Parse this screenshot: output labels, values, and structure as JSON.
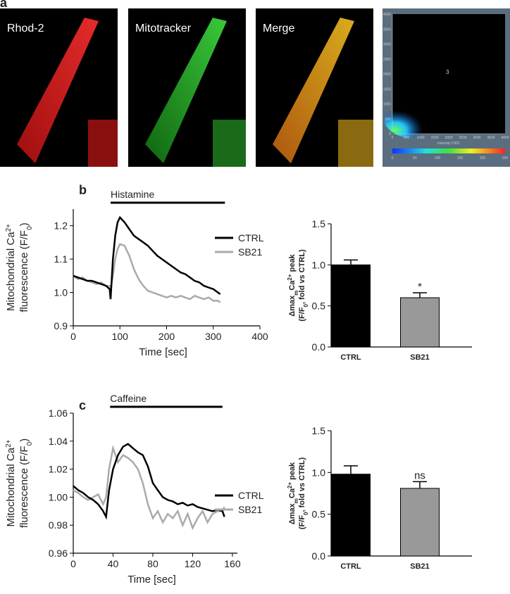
{
  "panel_labels": [
    "a",
    "b",
    "c"
  ],
  "images": {
    "labels": [
      "Rhod-2",
      "Mitotracker",
      "Merge"
    ],
    "colocalization": {
      "yticks": [
        0,
        500,
        1000,
        1500,
        2000,
        2500,
        3000,
        3500,
        4000
      ],
      "xticks": [
        0,
        500,
        1000,
        1500,
        2000,
        2500,
        3000,
        3500,
        4000
      ],
      "xlabel": "Intensity Ch01",
      "quadrant_label": "3",
      "colorbar_ticks": [
        0,
        50,
        100,
        150,
        200,
        250
      ]
    }
  },
  "chart_data": [
    {
      "type": "line",
      "ylabel": [
        [
          {
            "text": "Mitochondrial Ca"
          },
          {
            "text": "2+",
            "style": "sup"
          }
        ],
        [
          {
            "text": "fluorescence (F/F"
          },
          {
            "text": "0",
            "style": "sub"
          },
          {
            "text": ")"
          }
        ]
      ],
      "xlabel": "Time [sec]",
      "annotation": {
        "text": "Histamine",
        "x": [
          80,
          325
        ]
      },
      "x": [
        0,
        10,
        20,
        30,
        40,
        50,
        60,
        70,
        78,
        80,
        85,
        90,
        95,
        100,
        110,
        120,
        130,
        140,
        150,
        160,
        170,
        180,
        190,
        200,
        210,
        220,
        230,
        240,
        250,
        260,
        270,
        280,
        290,
        300,
        310,
        315
      ],
      "series": [
        {
          "name": "CTRL",
          "color": "#000000",
          "values": [
            1.05,
            1.045,
            1.04,
            1.035,
            1.035,
            1.03,
            1.025,
            1.02,
            1.01,
            0.98,
            1.1,
            1.17,
            1.21,
            1.225,
            1.21,
            1.19,
            1.17,
            1.16,
            1.15,
            1.14,
            1.125,
            1.11,
            1.1,
            1.09,
            1.08,
            1.07,
            1.06,
            1.055,
            1.045,
            1.035,
            1.03,
            1.02,
            1.015,
            1.01,
            1.0,
            0.995
          ]
        },
        {
          "name": "SB21",
          "color": "#aaaaaa",
          "values": [
            1.05,
            1.04,
            1.045,
            1.035,
            1.03,
            1.025,
            1.03,
            1.02,
            1.02,
            1.01,
            1.05,
            1.1,
            1.13,
            1.145,
            1.14,
            1.11,
            1.07,
            1.04,
            1.02,
            1.005,
            1.0,
            0.995,
            0.99,
            0.985,
            0.99,
            0.985,
            0.99,
            0.985,
            0.98,
            0.99,
            0.985,
            0.98,
            0.985,
            0.975,
            0.975,
            0.97
          ]
        }
      ],
      "xlim": [
        0,
        400
      ],
      "xticks": [
        0,
        100,
        200,
        300,
        400
      ],
      "ylim": [
        0.9,
        1.25
      ],
      "yticks": [
        0.9,
        {
          "value": 1,
          "label": "1.0"
        },
        1.1,
        1.2
      ]
    },
    {
      "type": "bar",
      "ylabel": [
        [
          {
            "text": "Δmax"
          },
          {
            "text": "m",
            "style": "sub"
          },
          {
            "text": "Ca"
          },
          {
            "text": "2+",
            "style": "sup"
          },
          {
            "text": " peak"
          }
        ],
        [
          {
            "text": "(F/F"
          },
          {
            "text": "0",
            "style": "sub"
          },
          {
            "text": ", fold vs CTRL)"
          }
        ]
      ],
      "ylabel_bold": true,
      "categories": [
        "CTRL",
        "SB21"
      ],
      "values": [
        1.0,
        0.6
      ],
      "errors": [
        0.06,
        0.06
      ],
      "colors": [
        "#000000",
        "#999999"
      ],
      "significance": [
        null,
        "*"
      ],
      "ylim": [
        0,
        1.5
      ],
      "yticks": [
        {
          "value": 0,
          "label": "0.0"
        },
        0.5,
        {
          "value": 1,
          "label": "1.0"
        },
        1.5
      ]
    },
    {
      "type": "line",
      "ylabel": [
        [
          {
            "text": "Mitochondrial Ca"
          },
          {
            "text": "2+",
            "style": "sup"
          }
        ],
        [
          {
            "text": "fluorescence (F/F"
          },
          {
            "text": "0",
            "style": "sub"
          },
          {
            "text": ")"
          }
        ]
      ],
      "xlabel": "Time [sec]",
      "annotation": {
        "text": "Caffeine",
        "x": [
          37,
          150
        ]
      },
      "x": [
        0,
        5,
        10,
        15,
        20,
        25,
        30,
        33,
        36,
        40,
        45,
        50,
        55,
        60,
        65,
        70,
        75,
        80,
        85,
        90,
        95,
        100,
        105,
        110,
        115,
        120,
        125,
        130,
        135,
        140,
        145,
        150,
        152
      ],
      "series": [
        {
          "name": "CTRL",
          "color": "#000000",
          "values": [
            1.008,
            1.005,
            1.003,
            1.0,
            0.998,
            0.995,
            0.99,
            0.986,
            1.005,
            1.02,
            1.03,
            1.036,
            1.038,
            1.035,
            1.032,
            1.03,
            1.022,
            1.01,
            1.005,
            1.0,
            0.998,
            0.997,
            0.995,
            0.996,
            0.994,
            0.995,
            0.993,
            0.992,
            0.991,
            0.99,
            0.991,
            0.99,
            0.986
          ]
        },
        {
          "name": "SB21",
          "color": "#aaaaaa",
          "values": [
            1.005,
            1.003,
            1.0,
            0.998,
            1.0,
            1.002,
            0.995,
            1.0,
            1.02,
            1.035,
            1.025,
            1.03,
            1.028,
            1.025,
            1.02,
            1.01,
            0.995,
            0.985,
            0.99,
            0.982,
            0.988,
            0.985,
            0.99,
            0.98,
            0.988,
            0.978,
            0.985,
            0.99,
            0.982,
            0.988,
            0.99,
            0.99,
            0.993
          ]
        }
      ],
      "xlim": [
        0,
        165
      ],
      "xticks": [
        0,
        40,
        80,
        120,
        160
      ],
      "ylim": [
        0.96,
        1.06
      ],
      "yticks": [
        0.96,
        0.98,
        {
          "value": 1,
          "label": "1.00"
        },
        1.02,
        1.04,
        1.06
      ]
    },
    {
      "type": "bar",
      "ylabel": [
        [
          {
            "text": "Δmax"
          },
          {
            "text": "m",
            "style": "sub"
          },
          {
            "text": "Ca"
          },
          {
            "text": "2+",
            "style": "sup"
          },
          {
            "text": " peak"
          }
        ],
        [
          {
            "text": "(F/F"
          },
          {
            "text": "0",
            "style": "sub"
          },
          {
            "text": ", fold vs CTRL)"
          }
        ]
      ],
      "ylabel_bold": true,
      "categories": [
        "CTRL",
        "SB21"
      ],
      "values": [
        0.98,
        0.81
      ],
      "errors": [
        0.1,
        0.08
      ],
      "colors": [
        "#000000",
        "#999999"
      ],
      "significance": [
        null,
        "ns"
      ],
      "ylim": [
        0,
        1.5
      ],
      "yticks": [
        {
          "value": 0,
          "label": "0.0"
        },
        0.5,
        {
          "value": 1,
          "label": "1.0"
        },
        1.5
      ]
    }
  ]
}
